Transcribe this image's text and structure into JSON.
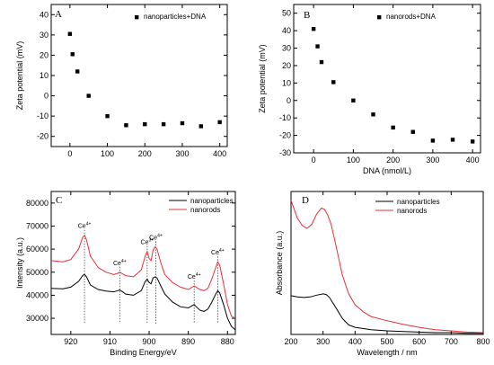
{
  "chart_data": [
    {
      "panel": "A",
      "type": "scatter",
      "xlabel": "",
      "ylabel": "Zeta potential (mV)",
      "xlim": [
        -50,
        420
      ],
      "ylim": [
        -25,
        45
      ],
      "xticks": [
        0,
        100,
        200,
        300,
        400
      ],
      "yticks": [
        -20,
        -10,
        0,
        10,
        20,
        30,
        40
      ],
      "series": [
        {
          "name": "nanoparticles+DNA",
          "color": "#000000",
          "marker": "square",
          "x": [
            0,
            7,
            20,
            50,
            100,
            150,
            200,
            250,
            300,
            350,
            400
          ],
          "y": [
            30.5,
            20.5,
            12,
            0,
            -10,
            -14.5,
            -14,
            -14,
            -13.5,
            -15,
            -13
          ]
        }
      ],
      "legend": "top-right"
    },
    {
      "panel": "B",
      "type": "scatter",
      "xlabel": "DNA (nmol/L)",
      "ylabel": "Zeta potential (mV)",
      "xlim": [
        -50,
        420
      ],
      "ylim": [
        -30,
        55
      ],
      "xticks": [
        0,
        100,
        200,
        300,
        400
      ],
      "yticks": [
        -30,
        -20,
        -10,
        0,
        10,
        20,
        30,
        40,
        50
      ],
      "series": [
        {
          "name": "nanorods+DNA",
          "color": "#000000",
          "marker": "square",
          "x": [
            0,
            10,
            20,
            50,
            100,
            150,
            200,
            250,
            300,
            350,
            400
          ],
          "y": [
            41,
            31,
            22,
            10.5,
            0,
            -8,
            -15.5,
            -18,
            -23,
            -22.5,
            -23.5
          ]
        }
      ],
      "legend": "top-right"
    },
    {
      "panel": "C",
      "type": "line",
      "xlabel": "Binding Energy/eV",
      "ylabel": "Intensity (a.u.)",
      "xlim": [
        925,
        878
      ],
      "x_reversed": true,
      "ylim": [
        23000,
        85000
      ],
      "xticks": [
        920,
        910,
        900,
        890,
        880
      ],
      "yticks": [
        30000,
        40000,
        50000,
        60000,
        70000,
        80000
      ],
      "series": [
        {
          "name": "nanoparticles",
          "color": "#000000",
          "x": [
            925,
            922,
            920,
            918,
            917,
            916.5,
            916,
            915,
            913,
            911,
            909,
            908,
            907.5,
            907,
            906,
            904,
            902,
            901,
            900.5,
            900,
            899.5,
            899,
            898.5,
            898,
            897,
            896,
            894,
            892,
            890,
            889,
            888.5,
            888,
            887,
            886,
            885,
            884,
            883,
            882.5,
            882,
            881,
            880,
            879,
            878
          ],
          "y": [
            43000,
            42800,
            43500,
            46000,
            48500,
            49000,
            48000,
            44500,
            42500,
            41800,
            41500,
            42000,
            42300,
            41800,
            40500,
            40000,
            42000,
            46000,
            47000,
            45500,
            45000,
            47500,
            48000,
            47500,
            44000,
            40500,
            37000,
            35000,
            34500,
            35500,
            36000,
            35000,
            33500,
            33000,
            34000,
            37000,
            40500,
            42000,
            41000,
            36000,
            30000,
            26500,
            25000
          ]
        },
        {
          "name": "nanorods",
          "color": "#e8303a",
          "x": [
            925,
            922,
            920,
            918,
            917,
            916.5,
            916,
            915,
            913,
            911,
            909,
            908,
            907.5,
            907,
            906,
            904,
            902,
            901,
            900.5,
            900,
            899.5,
            899,
            898.5,
            898,
            897,
            896,
            894,
            892,
            890,
            889,
            888.5,
            888,
            887,
            886,
            885,
            884,
            883,
            882.5,
            882,
            881,
            880,
            879,
            878
          ],
          "y": [
            55000,
            54500,
            55500,
            60000,
            65000,
            66000,
            64000,
            57000,
            52000,
            50000,
            49000,
            49500,
            50000,
            49500,
            48500,
            48000,
            51000,
            57000,
            59000,
            56000,
            55000,
            59500,
            61000,
            60000,
            54000,
            49000,
            45500,
            43500,
            42500,
            43500,
            44000,
            43500,
            42500,
            42000,
            43000,
            47000,
            52000,
            54500,
            53000,
            45000,
            36000,
            31000,
            30000
          ]
        }
      ],
      "annotations": [
        {
          "label": "Ce",
          "sup": "4+",
          "x": 916.5
        },
        {
          "label": "Ce",
          "sup": "4+",
          "x": 907.5
        },
        {
          "label": "Ce",
          "sup": "3+",
          "x": 900.5
        },
        {
          "label": "Ce",
          "sup": "4+",
          "x": 898.3
        },
        {
          "label": "Ce",
          "sup": "4+",
          "x": 888.5
        },
        {
          "label": "Ce",
          "sup": "4+",
          "x": 882.5
        }
      ],
      "legend": "top-right"
    },
    {
      "panel": "D",
      "type": "line",
      "xlabel": "Wavelength / nm",
      "ylabel": "Absorbance (a.u.)",
      "xlim": [
        200,
        800
      ],
      "ylim": [
        0,
        2.4
      ],
      "xticks": [
        200,
        300,
        400,
        500,
        600,
        700,
        800
      ],
      "yticks": [],
      "series": [
        {
          "name": "nanoparticles",
          "color": "#000000",
          "x": [
            200,
            220,
            240,
            260,
            280,
            300,
            310,
            320,
            340,
            360,
            380,
            400,
            450,
            500,
            550,
            600,
            650,
            700,
            750,
            800
          ],
          "y": [
            0.65,
            0.63,
            0.62,
            0.63,
            0.66,
            0.68,
            0.67,
            0.62,
            0.45,
            0.27,
            0.16,
            0.12,
            0.08,
            0.06,
            0.05,
            0.04,
            0.03,
            0.03,
            0.02,
            0.02
          ]
        },
        {
          "name": "nanorods",
          "color": "#e8303a",
          "x": [
            200,
            210,
            220,
            235,
            250,
            265,
            280,
            295,
            305,
            315,
            325,
            340,
            360,
            380,
            400,
            425,
            450,
            500,
            550,
            600,
            650,
            700,
            750,
            800
          ],
          "y": [
            2.25,
            2.1,
            1.95,
            1.83,
            1.78,
            1.85,
            2.02,
            2.12,
            2.1,
            2.0,
            1.85,
            1.5,
            1.0,
            0.68,
            0.5,
            0.38,
            0.3,
            0.23,
            0.17,
            0.12,
            0.08,
            0.06,
            0.04,
            0.03
          ]
        }
      ],
      "legend": "top-right"
    }
  ]
}
